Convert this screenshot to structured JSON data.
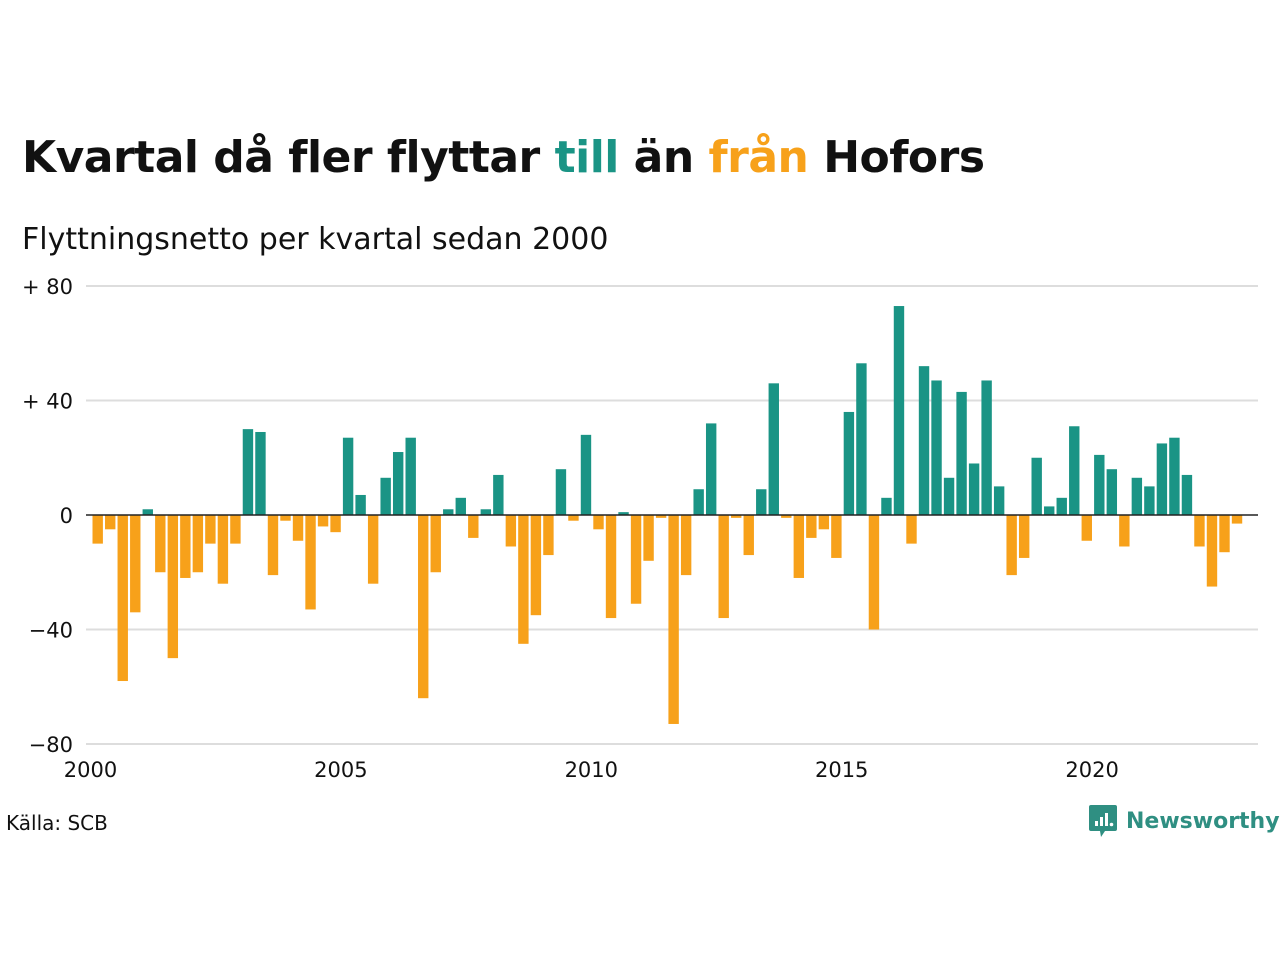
{
  "title": {
    "part1": "Kvartal då fler flyttar ",
    "till": "till",
    "part2": " än ",
    "fran": "från",
    "part3": " Hofors"
  },
  "subtitle": "Flyttningsnetto per kvartal sedan 2000",
  "source": "Källa: SCB",
  "logo": {
    "text": "Newsworthy",
    "icon": "newsworthy-logo-icon"
  },
  "colors": {
    "positive": "#1a9485",
    "negative": "#f7a11a",
    "grid": "#dddddd",
    "till": "#1a9485",
    "fran": "#f7a11a"
  },
  "chart_data": {
    "type": "bar",
    "title": "Kvartal då fler flyttar till än från Hofors",
    "subtitle": "Flyttningsnetto per kvartal sedan 2000",
    "x_ticks": [
      "2000",
      "2005",
      "2010",
      "2015",
      "2020"
    ],
    "y_ticks": [
      {
        "value": 80,
        "label": "+ 80"
      },
      {
        "value": 40,
        "label": "+ 40"
      },
      {
        "value": 0,
        "label": "0"
      },
      {
        "value": -40,
        "label": "−40"
      },
      {
        "value": -80,
        "label": "−80"
      }
    ],
    "ylim": [
      -80,
      80
    ],
    "grid": true,
    "start": "2000 Q1",
    "values": [
      -10,
      -5,
      -58,
      -34,
      2,
      -20,
      -50,
      -22,
      -20,
      -10,
      -24,
      -10,
      30,
      29,
      -21,
      -2,
      -9,
      -33,
      -4,
      -6,
      27,
      7,
      -24,
      13,
      22,
      27,
      -64,
      -20,
      2,
      6,
      -8,
      2,
      14,
      -11,
      -45,
      -35,
      -14,
      16,
      -2,
      28,
      -5,
      -36,
      1,
      -31,
      -16,
      -1,
      -73,
      -21,
      9,
      32,
      -36,
      -1,
      -14,
      9,
      46,
      -1,
      -22,
      -8,
      -5,
      -15,
      36,
      53,
      -40,
      6,
      73,
      -10,
      52,
      47,
      13,
      43,
      18,
      47,
      10,
      -21,
      -15,
      20,
      3,
      6,
      31,
      -9,
      21,
      16,
      -11,
      13,
      10,
      25,
      27,
      14,
      -11,
      -25,
      -13,
      -3
    ]
  }
}
